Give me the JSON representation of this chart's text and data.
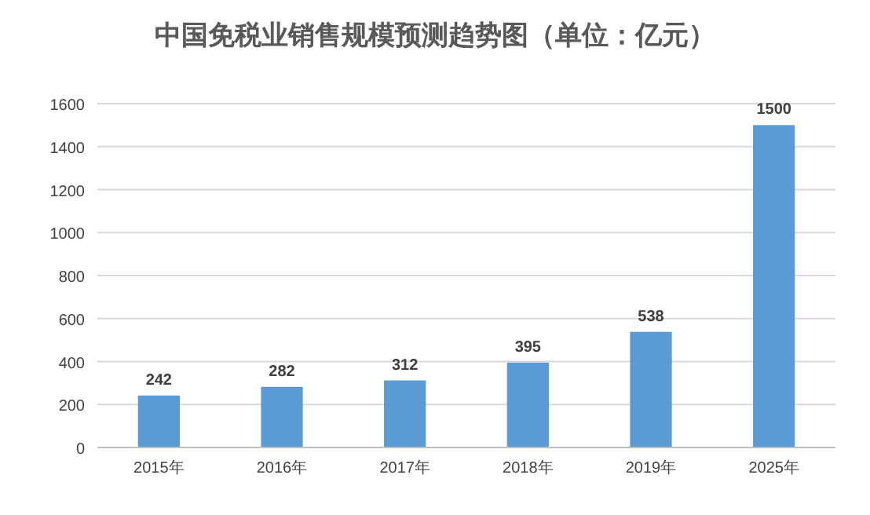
{
  "chart_data": {
    "type": "bar",
    "title": "中国免税业销售规模预测趋势图（单位：亿元）",
    "categories": [
      "2015年",
      "2016年",
      "2017年",
      "2018年",
      "2019年",
      "2025年"
    ],
    "values": [
      242,
      282,
      312,
      395,
      538,
      1500
    ],
    "color": "#5b9bd5",
    "ylim": [
      0,
      1600
    ],
    "yticks": [
      0,
      200,
      400,
      600,
      800,
      1000,
      1200,
      1400,
      1600
    ],
    "grid": "y",
    "data_labels": true
  }
}
